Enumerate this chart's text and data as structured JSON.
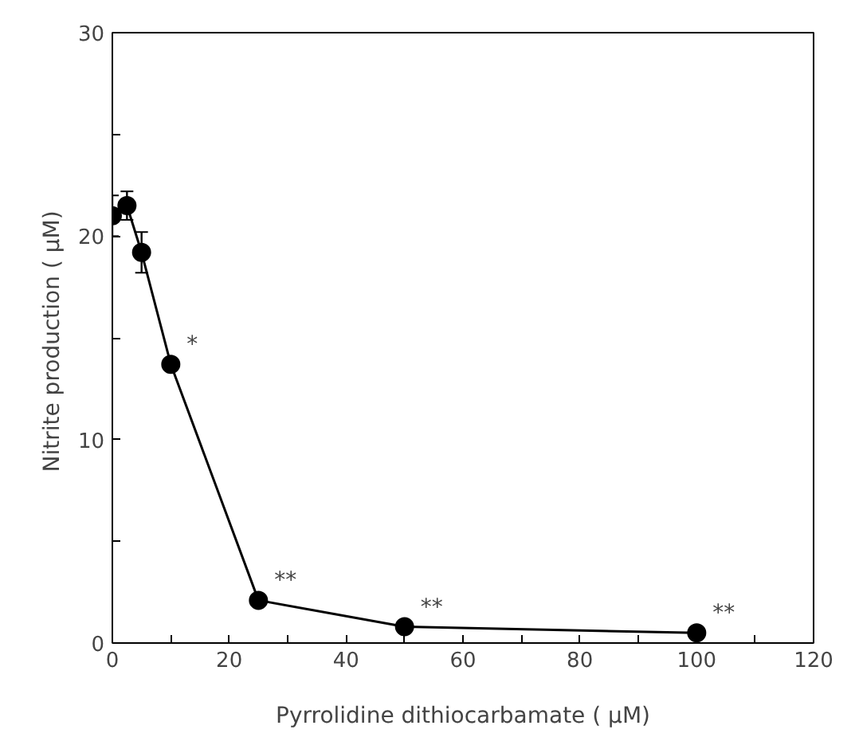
{
  "chart_data": {
    "type": "line",
    "xlabel": "Pyrrolidine dithiocarbamate ( μM)",
    "ylabel": "Nitrite production  ( μM)",
    "x": [
      0,
      2.5,
      5,
      10,
      25,
      50,
      100
    ],
    "series": [
      {
        "color": "#000000",
        "values": [
          21,
          21.5,
          19.2,
          13.7,
          2.1,
          0.8,
          0.5
        ],
        "errors": [
          1,
          0.7,
          1,
          null,
          null,
          null,
          null
        ]
      }
    ],
    "xlim": [
      0,
      120
    ],
    "ylim": [
      0,
      30
    ],
    "xticks": [
      0,
      {
        "value": 10,
        "label": null
      },
      20,
      {
        "value": 30,
        "label": null
      },
      40,
      {
        "value": 50,
        "label": null
      },
      60,
      {
        "value": 70,
        "label": null
      },
      80,
      {
        "value": 90,
        "label": null
      },
      100,
      {
        "value": 110,
        "label": null
      },
      120
    ],
    "yticks": [
      0,
      {
        "value": 5,
        "label": null
      },
      10,
      {
        "value": 15,
        "label": null
      },
      20,
      {
        "value": 25,
        "label": null
      },
      30
    ],
    "marker": "circle",
    "line_style": "solid",
    "grid": false,
    "annotations": [
      {
        "text": "*",
        "x": 10,
        "y": 13.7
      },
      {
        "text": "**",
        "x": 25,
        "y": 2.1
      },
      {
        "text": "**",
        "x": 50,
        "y": 0.8
      },
      {
        "text": "**",
        "x": 100,
        "y": 0.5
      }
    ]
  }
}
